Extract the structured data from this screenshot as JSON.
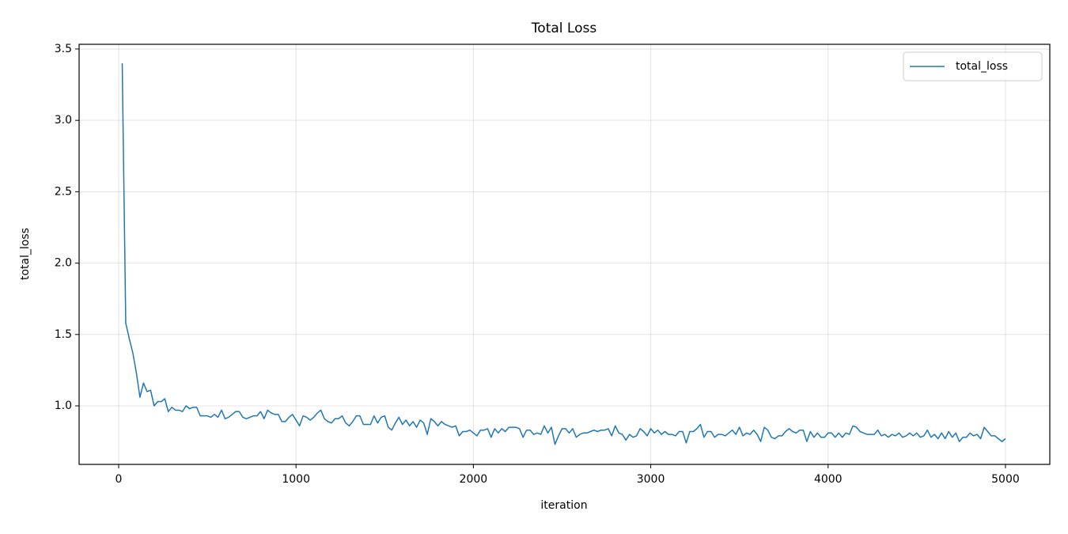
{
  "chart_data": {
    "type": "line",
    "title": "Total Loss",
    "x_label": "iteration",
    "y_label": "total_loss",
    "x": [
      20,
      40,
      60,
      80,
      100,
      120,
      140,
      160,
      180,
      200,
      220,
      240,
      260,
      280,
      300,
      320,
      340,
      360,
      380,
      400,
      420,
      440,
      460,
      480,
      500,
      520,
      540,
      560,
      580,
      600,
      620,
      640,
      660,
      680,
      700,
      720,
      740,
      760,
      780,
      800,
      820,
      840,
      860,
      880,
      900,
      920,
      940,
      960,
      980,
      1000,
      1020,
      1040,
      1060,
      1080,
      1100,
      1120,
      1140,
      1160,
      1180,
      1200,
      1220,
      1240,
      1260,
      1280,
      1300,
      1320,
      1340,
      1360,
      1380,
      1400,
      1420,
      1440,
      1460,
      1480,
      1500,
      1520,
      1540,
      1560,
      1580,
      1600,
      1620,
      1640,
      1660,
      1680,
      1700,
      1720,
      1740,
      1760,
      1780,
      1800,
      1820,
      1840,
      1860,
      1880,
      1900,
      1920,
      1940,
      1960,
      1980,
      2000,
      2020,
      2040,
      2060,
      2080,
      2100,
      2120,
      2140,
      2160,
      2180,
      2200,
      2220,
      2240,
      2260,
      2280,
      2300,
      2320,
      2340,
      2360,
      2380,
      2400,
      2420,
      2440,
      2460,
      2480,
      2500,
      2520,
      2540,
      2560,
      2580,
      2600,
      2620,
      2640,
      2660,
      2680,
      2700,
      2720,
      2740,
      2760,
      2780,
      2800,
      2820,
      2840,
      2860,
      2880,
      2900,
      2920,
      2940,
      2960,
      2980,
      3000,
      3020,
      3040,
      3060,
      3080,
      3100,
      3120,
      3140,
      3160,
      3180,
      3200,
      3220,
      3240,
      3260,
      3280,
      3300,
      3320,
      3340,
      3360,
      3380,
      3400,
      3420,
      3440,
      3460,
      3480,
      3500,
      3520,
      3540,
      3560,
      3580,
      3600,
      3620,
      3640,
      3660,
      3680,
      3700,
      3720,
      3740,
      3760,
      3780,
      3800,
      3820,
      3840,
      3860,
      3880,
      3900,
      3920,
      3940,
      3960,
      3980,
      4000,
      4020,
      4040,
      4060,
      4080,
      4100,
      4120,
      4140,
      4160,
      4180,
      4200,
      4220,
      4240,
      4260,
      4280,
      4300,
      4320,
      4340,
      4360,
      4380,
      4400,
      4420,
      4440,
      4460,
      4480,
      4500,
      4520,
      4540,
      4560,
      4580,
      4600,
      4620,
      4640,
      4660,
      4680,
      4700,
      4720,
      4740,
      4760,
      4780,
      4800,
      4820,
      4840,
      4860,
      4880,
      4900,
      4920,
      4940,
      4960,
      4980,
      5000
    ],
    "series": [
      {
        "name": "total_loss",
        "color": "#1f77b4",
        "values": [
          3.4,
          1.58,
          1.47,
          1.37,
          1.23,
          1.06,
          1.16,
          1.1,
          1.11,
          1.0,
          1.03,
          1.03,
          1.05,
          0.96,
          0.99,
          0.97,
          0.97,
          0.96,
          1.0,
          0.98,
          0.99,
          0.99,
          0.93,
          0.93,
          0.93,
          0.92,
          0.94,
          0.92,
          0.97,
          0.91,
          0.92,
          0.94,
          0.96,
          0.96,
          0.92,
          0.91,
          0.92,
          0.93,
          0.93,
          0.96,
          0.91,
          0.97,
          0.95,
          0.94,
          0.94,
          0.89,
          0.89,
          0.92,
          0.94,
          0.9,
          0.86,
          0.93,
          0.92,
          0.9,
          0.92,
          0.95,
          0.97,
          0.91,
          0.89,
          0.88,
          0.91,
          0.91,
          0.93,
          0.88,
          0.86,
          0.89,
          0.93,
          0.93,
          0.87,
          0.87,
          0.87,
          0.93,
          0.88,
          0.92,
          0.93,
          0.85,
          0.83,
          0.88,
          0.92,
          0.87,
          0.9,
          0.86,
          0.89,
          0.85,
          0.9,
          0.88,
          0.8,
          0.91,
          0.89,
          0.86,
          0.89,
          0.87,
          0.86,
          0.85,
          0.86,
          0.79,
          0.82,
          0.82,
          0.83,
          0.81,
          0.79,
          0.83,
          0.83,
          0.84,
          0.78,
          0.84,
          0.81,
          0.84,
          0.82,
          0.85,
          0.85,
          0.85,
          0.84,
          0.78,
          0.83,
          0.83,
          0.8,
          0.81,
          0.8,
          0.86,
          0.81,
          0.85,
          0.73,
          0.79,
          0.84,
          0.84,
          0.81,
          0.84,
          0.78,
          0.8,
          0.81,
          0.81,
          0.82,
          0.83,
          0.82,
          0.83,
          0.83,
          0.84,
          0.79,
          0.86,
          0.81,
          0.8,
          0.76,
          0.8,
          0.78,
          0.79,
          0.84,
          0.82,
          0.79,
          0.84,
          0.81,
          0.83,
          0.8,
          0.82,
          0.8,
          0.8,
          0.79,
          0.82,
          0.82,
          0.74,
          0.82,
          0.82,
          0.84,
          0.87,
          0.78,
          0.82,
          0.82,
          0.78,
          0.8,
          0.8,
          0.79,
          0.81,
          0.83,
          0.8,
          0.85,
          0.79,
          0.81,
          0.8,
          0.83,
          0.8,
          0.75,
          0.85,
          0.83,
          0.78,
          0.77,
          0.79,
          0.79,
          0.82,
          0.84,
          0.82,
          0.81,
          0.83,
          0.83,
          0.75,
          0.82,
          0.78,
          0.81,
          0.78,
          0.78,
          0.81,
          0.81,
          0.78,
          0.81,
          0.78,
          0.81,
          0.8,
          0.86,
          0.85,
          0.82,
          0.81,
          0.8,
          0.8,
          0.8,
          0.83,
          0.79,
          0.8,
          0.78,
          0.8,
          0.79,
          0.81,
          0.78,
          0.79,
          0.81,
          0.79,
          0.81,
          0.78,
          0.79,
          0.83,
          0.78,
          0.8,
          0.77,
          0.81,
          0.77,
          0.82,
          0.78,
          0.81,
          0.75,
          0.78,
          0.78,
          0.81,
          0.79,
          0.8,
          0.77,
          0.85,
          0.82,
          0.79,
          0.79,
          0.77,
          0.75,
          0.77
        ]
      }
    ],
    "xlim": [
      -223,
      5250
    ],
    "ylim": [
      0.59,
      3.533
    ],
    "xticks": [
      0,
      1000,
      2000,
      3000,
      4000,
      5000
    ],
    "yticks": [
      {
        "value": 1,
        "label": "1.0"
      },
      1.5,
      {
        "value": 2,
        "label": "2.0"
      },
      2.5,
      {
        "value": 3,
        "label": "3.0"
      },
      3.5
    ],
    "grid": true,
    "legend": "upper right"
  }
}
